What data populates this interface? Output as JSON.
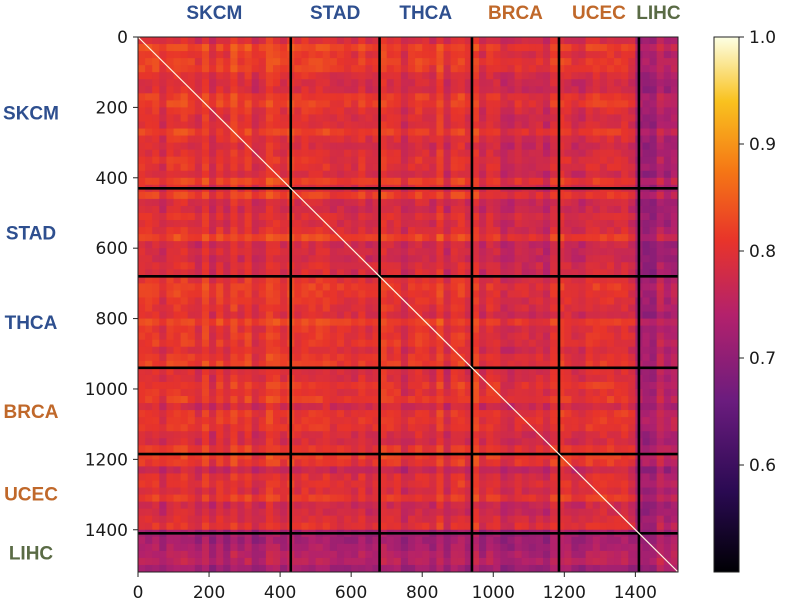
{
  "chart_data": {
    "type": "heatmap",
    "title": "",
    "xlabel": "",
    "ylabel": "",
    "xlim": [
      0,
      1520
    ],
    "ylim": [
      1520,
      0
    ],
    "x_ticks": [
      0,
      200,
      400,
      600,
      800,
      1000,
      1200,
      1400
    ],
    "y_ticks": [
      0,
      200,
      400,
      600,
      800,
      1000,
      1200,
      1400
    ],
    "colorbar": {
      "range": [
        0.5,
        1.0
      ],
      "ticks": [
        0.6,
        0.7,
        0.8,
        0.9,
        1.0
      ],
      "tick_labels": [
        "0.6",
        "0.7",
        "0.8",
        "0.9",
        "1.0"
      ],
      "colormap": "inferno-like (black → purple → red → orange → yellow → white)"
    },
    "diagonal_value": 1.0,
    "groups": [
      {
        "name": "SKCM",
        "start": 0,
        "end": 430,
        "color": "#2e4f8f",
        "typical_similarity": 0.8
      },
      {
        "name": "STAD",
        "start": 430,
        "end": 680,
        "color": "#2e4f8f",
        "typical_similarity": 0.8
      },
      {
        "name": "THCA",
        "start": 680,
        "end": 940,
        "color": "#2e4f8f",
        "typical_similarity": 0.8
      },
      {
        "name": "BRCA",
        "start": 940,
        "end": 1185,
        "color": "#c0682a",
        "typical_similarity": 0.79
      },
      {
        "name": "UCEC",
        "start": 1185,
        "end": 1410,
        "color": "#c0682a",
        "typical_similarity": 0.79
      },
      {
        "name": "LIHC",
        "start": 1410,
        "end": 1520,
        "color": "#5a6b45",
        "typical_similarity": 0.72
      }
    ],
    "boundaries": [
      430,
      680,
      940,
      1185,
      1410
    ]
  }
}
